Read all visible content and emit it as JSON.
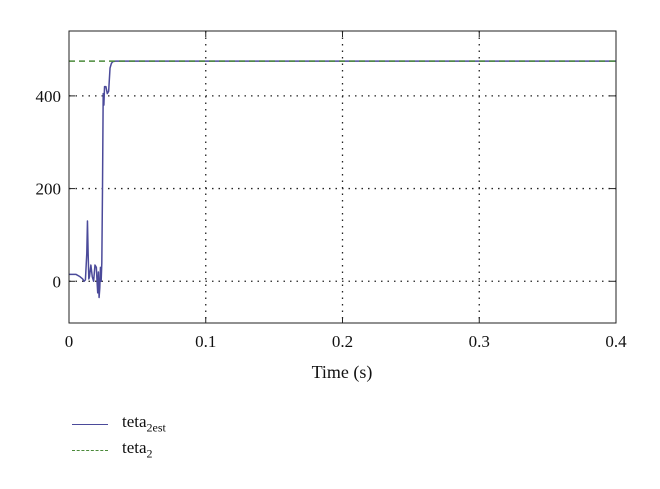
{
  "chart_data": {
    "type": "line",
    "xlabel": "Time (s)",
    "ylabel": "",
    "xlim": [
      0,
      0.4
    ],
    "ylim": [
      -90,
      540
    ],
    "xticks": [
      "0",
      "0.1",
      "0.2",
      "0.3",
      "0.4"
    ],
    "yticks": [
      "0",
      "200",
      "400"
    ],
    "grid": true,
    "legend_position": "bottom-left",
    "series": [
      {
        "name": "teta2est",
        "name_base": "teta",
        "name_sub": "2est",
        "color": "#4b4a9a",
        "style": "solid",
        "points": [
          [
            0,
            15
          ],
          [
            0.005,
            15
          ],
          [
            0.008,
            10
          ],
          [
            0.01,
            5
          ],
          [
            0.011,
            0
          ],
          [
            0.012,
            3
          ],
          [
            0.013,
            60
          ],
          [
            0.0135,
            130
          ],
          [
            0.014,
            60
          ],
          [
            0.0145,
            5
          ],
          [
            0.015,
            10
          ],
          [
            0.016,
            35
          ],
          [
            0.017,
            10
          ],
          [
            0.018,
            0
          ],
          [
            0.019,
            35
          ],
          [
            0.02,
            30
          ],
          [
            0.0205,
            0
          ],
          [
            0.021,
            -25
          ],
          [
            0.0215,
            20
          ],
          [
            0.022,
            -35
          ],
          [
            0.0225,
            -15
          ],
          [
            0.023,
            30
          ],
          [
            0.0235,
            0
          ],
          [
            0.024,
            40
          ],
          [
            0.0245,
            200
          ],
          [
            0.025,
            405
          ],
          [
            0.0255,
            380
          ],
          [
            0.026,
            420
          ],
          [
            0.027,
            420
          ],
          [
            0.028,
            405
          ],
          [
            0.029,
            410
          ],
          [
            0.03,
            460
          ],
          [
            0.031,
            470
          ],
          [
            0.032,
            474
          ],
          [
            0.034,
            475
          ],
          [
            0.4,
            475
          ]
        ]
      },
      {
        "name": "teta2",
        "name_base": "teta",
        "name_sub": "2",
        "color": "#4a8a3a",
        "style": "dashed",
        "points": [
          [
            0,
            475
          ],
          [
            0.4,
            475
          ]
        ]
      }
    ]
  }
}
